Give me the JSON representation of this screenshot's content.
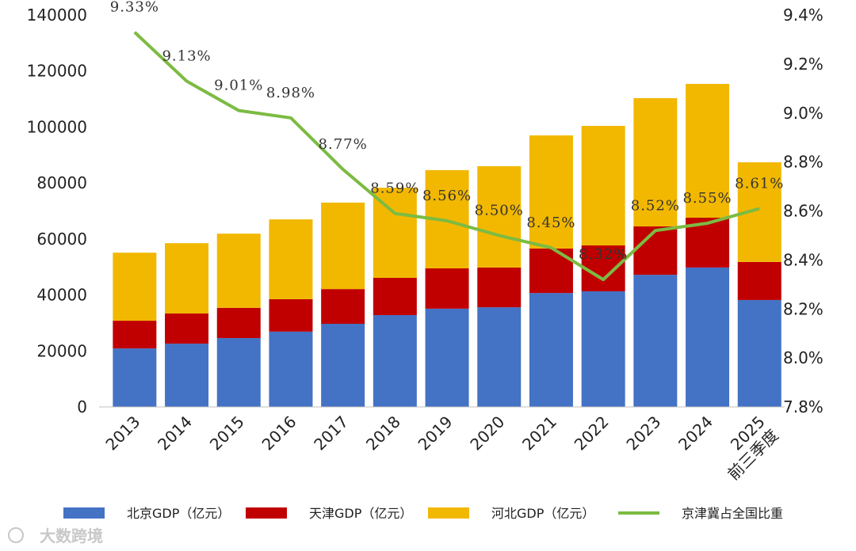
{
  "chart_data": {
    "type": "bar",
    "stacked": true,
    "categories": [
      "2013",
      "2014",
      "2015",
      "2016",
      "2017",
      "2018",
      "2019",
      "2020",
      "2021",
      "2022",
      "2023",
      "2024",
      "2025\n前三季度"
    ],
    "series": [
      {
        "name": "北京GDP（亿元）",
        "color": "#4472C4",
        "axis": "left",
        "values": [
          20900,
          22600,
          24600,
          26900,
          29700,
          32800,
          35100,
          35600,
          40700,
          41300,
          47200,
          49800,
          38200
        ]
      },
      {
        "name": "天津GDP（亿元）",
        "color": "#C00000",
        "axis": "left",
        "values": [
          9900,
          10800,
          10800,
          11600,
          12400,
          13300,
          14400,
          14200,
          15900,
          16400,
          17300,
          17800,
          13600
        ]
      },
      {
        "name": "河北GDP（亿元）",
        "color": "#F2B800",
        "axis": "left",
        "values": [
          24300,
          25100,
          26500,
          28500,
          30900,
          32200,
          35100,
          36200,
          40400,
          42700,
          45800,
          47800,
          35600
        ]
      },
      {
        "name": "京津冀占全国比重",
        "color": "#7CBB42",
        "axis": "right",
        "type": "line",
        "values": [
          9.33,
          9.13,
          9.01,
          8.98,
          8.77,
          8.59,
          8.56,
          8.5,
          8.45,
          8.32,
          8.52,
          8.55,
          8.61
        ],
        "labels": [
          "9.33%",
          "9.13%",
          "9.01%",
          "8.98%",
          "8.77%",
          "8.59%",
          "8.56%",
          "8.50%",
          "8.45%",
          "8.32%",
          "8.52%",
          "8.55%",
          "8.61%"
        ]
      }
    ],
    "ylim": [
      0,
      140000
    ],
    "yticks": [
      "0",
      "20000",
      "40000",
      "60000",
      "80000",
      "100000",
      "120000",
      "140000"
    ],
    "y2lim": [
      7.8,
      9.4
    ],
    "y2ticks": [
      "7.8%",
      "8.0%",
      "8.2%",
      "8.4%",
      "8.6%",
      "8.8%",
      "9.0%",
      "9.2%",
      "9.4%"
    ],
    "grid": false,
    "legend": "bottom"
  },
  "watermark": "大数跨境"
}
